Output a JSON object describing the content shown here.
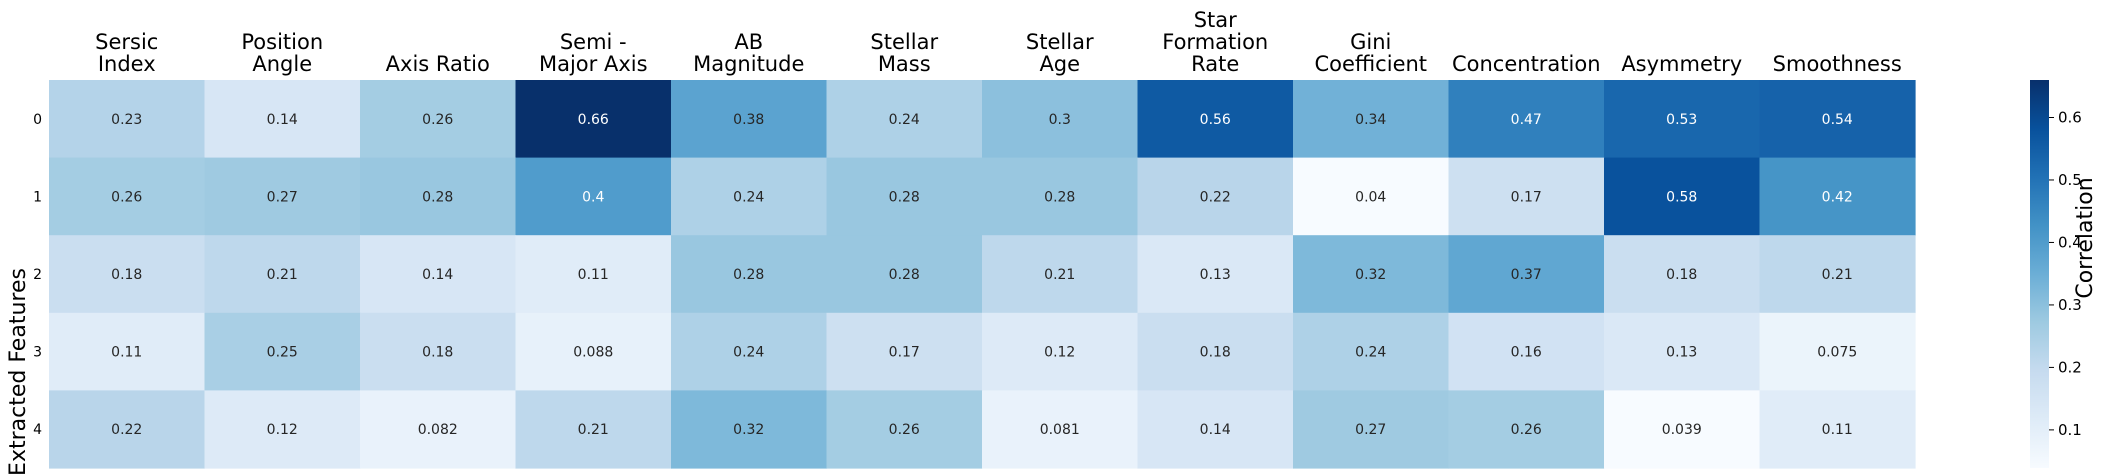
{
  "chart_data": {
    "type": "heatmap",
    "title": "",
    "xlabel": "",
    "ylabel": "Extracted Features",
    "columns": [
      [
        "Sersic",
        "Index"
      ],
      [
        "Position",
        "Angle"
      ],
      [
        "Axis Ratio"
      ],
      [
        "Semi -",
        "Major Axis"
      ],
      [
        "AB",
        "Magnitude"
      ],
      [
        "Stellar",
        "Mass"
      ],
      [
        "Stellar",
        "Age"
      ],
      [
        "Star",
        "Formation",
        "Rate"
      ],
      [
        "Gini",
        "Coefficient"
      ],
      [
        "Concentration"
      ],
      [
        "Asymmetry"
      ],
      [
        "Smoothness"
      ]
    ],
    "rows": [
      "0",
      "1",
      "2",
      "3",
      "4"
    ],
    "values": [
      [
        0.23,
        0.14,
        0.26,
        0.66,
        0.38,
        0.24,
        0.3,
        0.56,
        0.34,
        0.47,
        0.53,
        0.54
      ],
      [
        0.26,
        0.27,
        0.28,
        0.4,
        0.24,
        0.28,
        0.28,
        0.22,
        0.04,
        0.17,
        0.58,
        0.42
      ],
      [
        0.18,
        0.21,
        0.14,
        0.11,
        0.28,
        0.28,
        0.21,
        0.13,
        0.32,
        0.37,
        0.18,
        0.21
      ],
      [
        0.11,
        0.25,
        0.18,
        0.088,
        0.24,
        0.17,
        0.12,
        0.18,
        0.24,
        0.16,
        0.13,
        0.075
      ],
      [
        0.22,
        0.12,
        0.082,
        0.21,
        0.32,
        0.26,
        0.081,
        0.14,
        0.27,
        0.26,
        0.039,
        0.11
      ]
    ],
    "value_labels": [
      [
        "0.23",
        "0.14",
        "0.26",
        "0.66",
        "0.38",
        "0.24",
        "0.3",
        "0.56",
        "0.34",
        "0.47",
        "0.53",
        "0.54"
      ],
      [
        "0.26",
        "0.27",
        "0.28",
        "0.4",
        "0.24",
        "0.28",
        "0.28",
        "0.22",
        "0.04",
        "0.17",
        "0.58",
        "0.42"
      ],
      [
        "0.18",
        "0.21",
        "0.14",
        "0.11",
        "0.28",
        "0.28",
        "0.21",
        "0.13",
        "0.32",
        "0.37",
        "0.18",
        "0.21"
      ],
      [
        "0.11",
        "0.25",
        "0.18",
        "0.088",
        "0.24",
        "0.17",
        "0.12",
        "0.18",
        "0.24",
        "0.16",
        "0.13",
        "0.075"
      ],
      [
        "0.22",
        "0.12",
        "0.082",
        "0.21",
        "0.32",
        "0.26",
        "0.081",
        "0.14",
        "0.27",
        "0.26",
        "0.039",
        "0.11"
      ]
    ],
    "colormap": "Blues",
    "colormap_stops": [
      "#f7fbff",
      "#deebf7",
      "#c6dbef",
      "#9ecae1",
      "#6baed6",
      "#4292c6",
      "#2171b5",
      "#08519c",
      "#08306b"
    ],
    "vmin": 0.039,
    "vmax": 0.66,
    "colorbar": {
      "label": "Correlation",
      "ticks": [
        0.1,
        0.2,
        0.3,
        0.4,
        0.5,
        0.6
      ],
      "tick_labels": [
        "0.1",
        "0.2",
        "0.3",
        "0.4",
        "0.5",
        "0.6"
      ]
    },
    "grid": false,
    "legend": "colorbar-right"
  }
}
